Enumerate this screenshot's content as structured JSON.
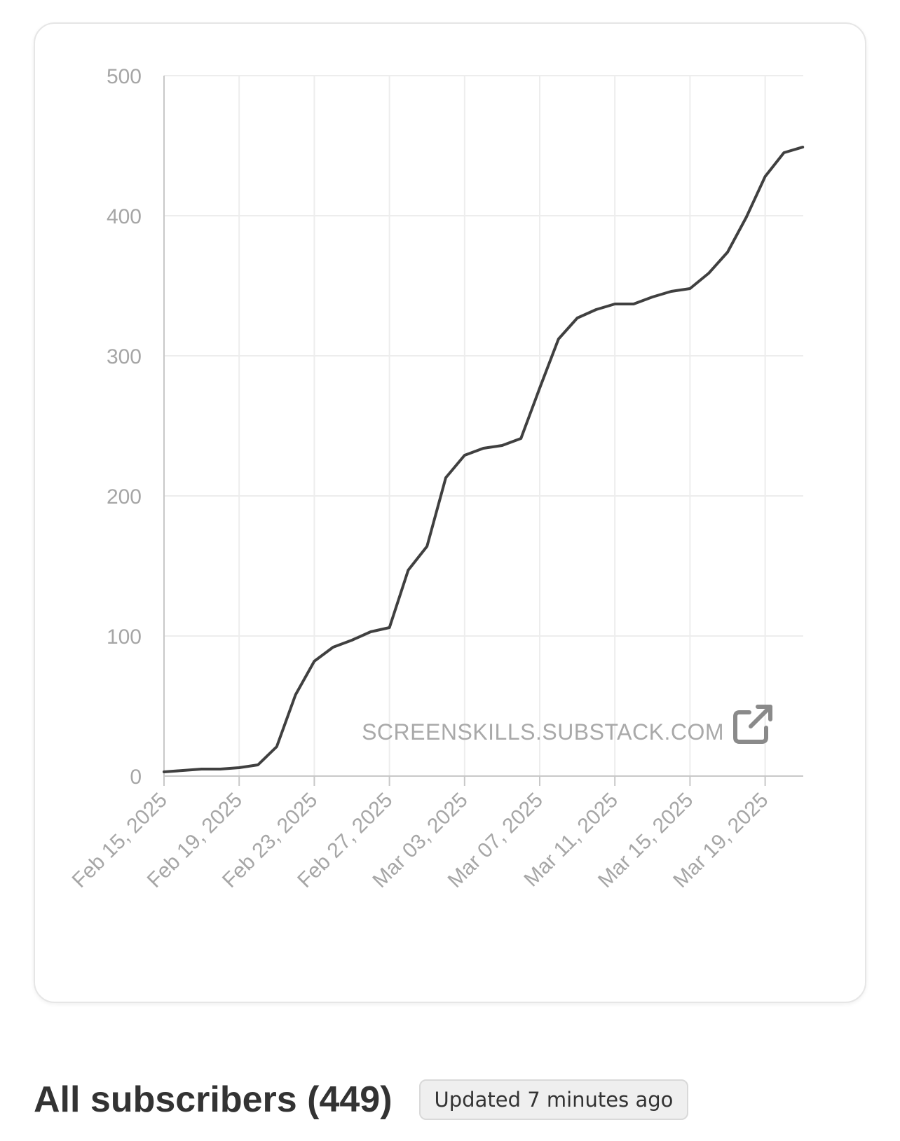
{
  "watermark": {
    "text": "SCREENSKILLS.SUBSTACK.COM",
    "icon": "external-link-icon"
  },
  "footer": {
    "title": "All subscribers (449)",
    "badge": "Updated 7 minutes ago"
  },
  "colors": {
    "line": "#404040",
    "grid": "#ededed",
    "axis": "#c8c8c8",
    "tick_text": "#a6a6a6"
  },
  "chart_data": {
    "type": "line",
    "title": "",
    "xlabel": "",
    "ylabel": "",
    "ylim": [
      0,
      500
    ],
    "yticks": [
      0,
      100,
      200,
      300,
      400,
      500
    ],
    "xlim": [
      "2025-02-15",
      "2025-03-21"
    ],
    "xtick_labels": [
      "Feb 15, 2025",
      "Feb 19, 2025",
      "Feb 23, 2025",
      "Feb 27, 2025",
      "Mar 03, 2025",
      "Mar 07, 2025",
      "Mar 11, 2025",
      "Mar 15, 2025",
      "Mar 19, 2025"
    ],
    "grid": true,
    "series": [
      {
        "x": [
          "2025-02-15",
          "2025-02-16",
          "2025-02-17",
          "2025-02-18",
          "2025-02-19",
          "2025-02-20",
          "2025-02-21",
          "2025-02-22",
          "2025-02-23",
          "2025-02-24",
          "2025-02-25",
          "2025-02-26",
          "2025-02-27",
          "2025-02-28",
          "2025-03-01",
          "2025-03-02",
          "2025-03-03",
          "2025-03-04",
          "2025-03-05",
          "2025-03-06",
          "2025-03-07",
          "2025-03-08",
          "2025-03-09",
          "2025-03-10",
          "2025-03-11",
          "2025-03-12",
          "2025-03-13",
          "2025-03-14",
          "2025-03-15",
          "2025-03-16",
          "2025-03-17",
          "2025-03-18",
          "2025-03-19",
          "2025-03-20",
          "2025-03-21"
        ],
        "values": [
          3,
          4,
          5,
          5,
          6,
          8,
          21,
          58,
          82,
          92,
          97,
          103,
          106,
          147,
          164,
          213,
          229,
          234,
          236,
          241,
          277,
          312,
          327,
          333,
          337,
          337,
          342,
          346,
          348,
          359,
          374,
          399,
          428,
          445,
          449
        ]
      }
    ]
  }
}
